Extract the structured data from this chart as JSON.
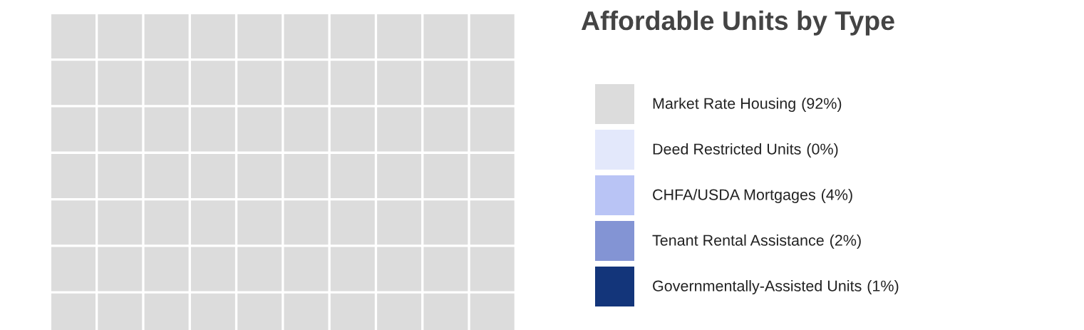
{
  "chart_data": {
    "type": "other",
    "title": "Affordable Units by Type",
    "categories": [
      "Market Rate Housing",
      "Deed Restricted Units",
      "CHFA/USDA Mortgages",
      "Tenant Rental Assistance",
      "Governmentally-Assisted Units"
    ],
    "values": [
      92,
      0,
      4,
      2,
      1
    ],
    "value_labels": [
      "(92%)",
      "(0%)",
      "(4%)",
      "(2%)",
      "(1%)"
    ],
    "colors": [
      "#dcdcdc",
      "#e3e8fb",
      "#b9c4f5",
      "#8394d4",
      "#13357a"
    ]
  }
}
